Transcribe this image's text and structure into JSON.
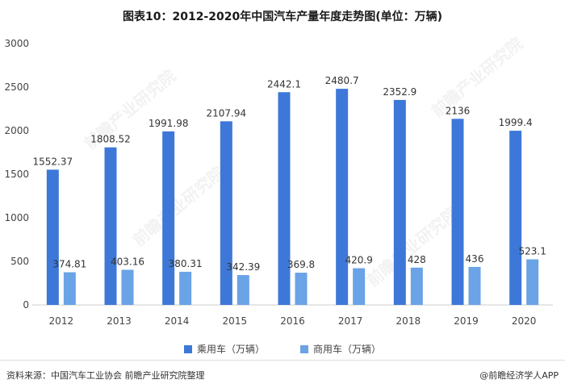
{
  "title": "图表10：2012-2020年中国汽车产量年度走势图(单位：万辆)",
  "footer": {
    "source": "资料来源：中国汽车工业协会 前瞻产业研究院整理",
    "brand": "@前瞻经济学人APP"
  },
  "watermark": "前瞻产业研究院",
  "colors": {
    "passenger": "#3d78d8",
    "commercial": "#6aa3e6"
  },
  "chart_data": {
    "type": "bar",
    "title": "图表10：2012-2020年中国汽车产量年度走势图(单位：万辆)",
    "categories": [
      "2012",
      "2013",
      "2014",
      "2015",
      "2016",
      "2017",
      "2018",
      "2019",
      "2020"
    ],
    "series": [
      {
        "name": "乘用车（万辆）",
        "values": [
          1552.37,
          1808.52,
          1991.98,
          2107.94,
          2442.1,
          2480.7,
          2352.9,
          2136,
          1999.4
        ]
      },
      {
        "name": "商用车（万辆）",
        "values": [
          374.81,
          403.16,
          380.31,
          342.39,
          369.8,
          420.9,
          428,
          436,
          523.1
        ]
      }
    ],
    "labels": [
      [
        "1552.37",
        "1808.52",
        "1991.98",
        "2107.94",
        "2442.1",
        "2480.7",
        "2352.9",
        "2136",
        "1999.4"
      ],
      [
        "374.81",
        "403.16",
        "380.31",
        "342.39",
        "369.8",
        "420.9",
        "428",
        "436",
        "523.1"
      ]
    ],
    "y_ticks": [
      "0",
      "500",
      "1000",
      "1500",
      "2000",
      "2500",
      "3000"
    ],
    "ylim": [
      0,
      3000
    ],
    "legend": "bottom",
    "grid": false
  }
}
